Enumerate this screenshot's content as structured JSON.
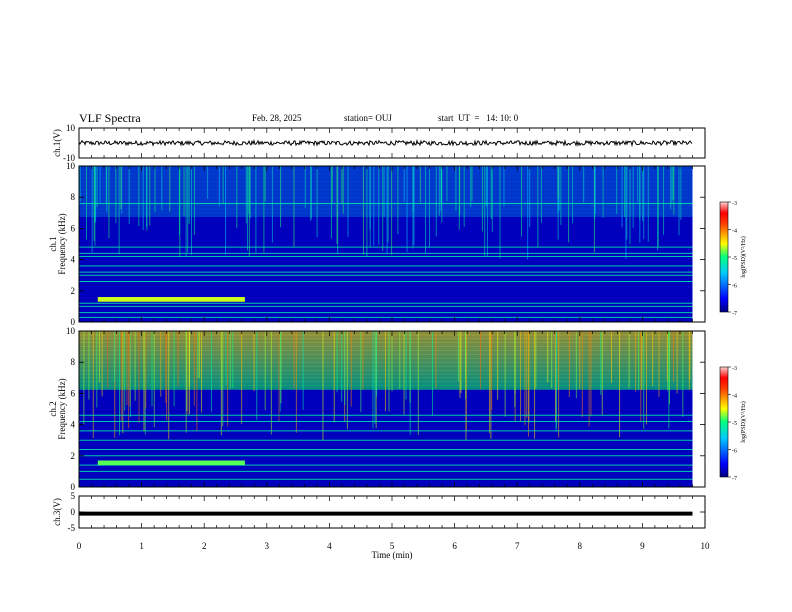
{
  "header": {
    "title": "VLF Spectra",
    "date": "Feb. 28, 2025",
    "station": "station= OUJ",
    "start_ut": "start  UT  =   14: 10: 0"
  },
  "chart_data": [
    {
      "type": "line",
      "panel": "ch1-waveform",
      "ylabel": "ch.1(V)",
      "ylim": [
        -10,
        10
      ],
      "y_ticks": [
        "10",
        "-10"
      ],
      "xlim": [
        0,
        10
      ],
      "series": [
        {
          "values_summary": {
            "baseline": 0.0,
            "noise_amplitude": 1.5,
            "end_min": 9.8
          }
        }
      ]
    },
    {
      "type": "heatmap",
      "panel": "ch1-spectrogram",
      "ylabel": "ch.1 Frequency (kHz)",
      "ylim": [
        0,
        10
      ],
      "y_ticks": [
        "0",
        "2",
        "4",
        "6",
        "8",
        "10"
      ],
      "xlim": [
        0,
        10
      ],
      "data_end_min": 9.8,
      "colorbar": {
        "label": "log(PSD)(V²/Hz)",
        "range": [
          -7,
          -3
        ],
        "ticks": [
          "-3",
          "-4",
          "-5",
          "-6",
          "-7"
        ]
      },
      "features": {
        "tones_khz": [
          0.3,
          0.6,
          1.0,
          1.2,
          2.6,
          3.0,
          3.2,
          3.6,
          4.2,
          4.4,
          4.8,
          7.6
        ],
        "strong_band": {
          "t_start": 0.3,
          "t_end": 2.65,
          "f_low": 1.3,
          "f_high": 1.6
        },
        "sferic_band_low_khz": 6.5
      }
    },
    {
      "type": "heatmap",
      "panel": "ch2-spectrogram",
      "ylabel": "ch.2 Frequency (kHz)",
      "ylim": [
        0,
        10
      ],
      "y_ticks": [
        "0",
        "2",
        "4",
        "6",
        "8",
        "10"
      ],
      "xlim": [
        0,
        10
      ],
      "data_end_min": 9.8,
      "colorbar": {
        "label": "log(PSD)(V²/Hz)",
        "range": [
          -7,
          -3
        ],
        "ticks": [
          "-3",
          "-4",
          "-5",
          "-6",
          "-7"
        ]
      },
      "features": {
        "tones_khz": [
          0.5,
          1.0,
          1.4,
          2.0,
          2.4,
          3.0,
          3.6,
          4.2,
          4.6
        ],
        "strong_band": {
          "t_start": 0.3,
          "t_end": 2.65,
          "f_low": 1.4,
          "f_high": 1.7
        },
        "bright_band_low_khz": 6.0
      }
    },
    {
      "type": "line",
      "panel": "ch3-waveform",
      "ylabel": "ch.3(V)",
      "ylim": [
        -5,
        5
      ],
      "y_ticks": [
        "5",
        "0",
        "-5"
      ],
      "xlim": [
        0,
        10
      ],
      "series": [
        {
          "values_summary": {
            "baseline": -0.5,
            "end_min": 9.8
          }
        }
      ]
    }
  ],
  "x_axis": {
    "label": "Time  (min)",
    "ticks": [
      "0",
      "1",
      "2",
      "3",
      "4",
      "5",
      "6",
      "7",
      "8",
      "9",
      "10"
    ]
  },
  "colors": {
    "background": "#00008b",
    "line": "#000000"
  }
}
